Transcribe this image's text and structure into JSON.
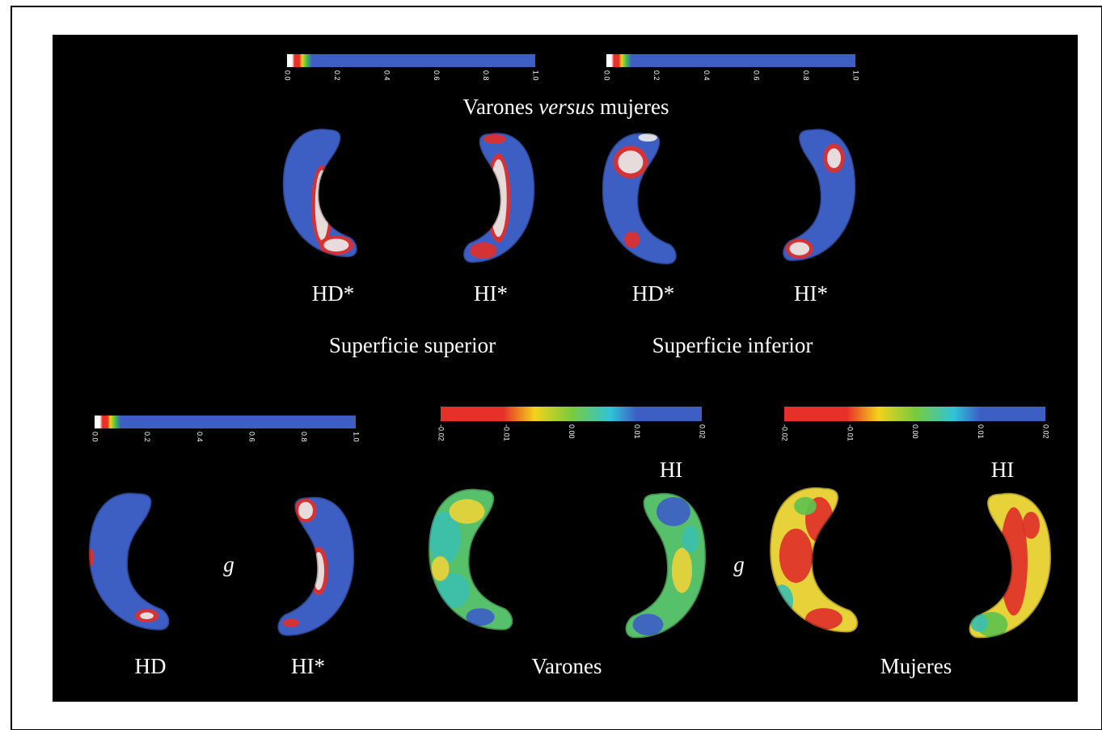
{
  "top_colorbars": [
    {
      "ticks": [
        "0.0",
        "0.2",
        "0.4",
        "0.6",
        "0.8",
        "1.0"
      ]
    },
    {
      "ticks": [
        "0.0",
        "0.2",
        "0.4",
        "0.6",
        "0.8",
        "1.0"
      ]
    }
  ],
  "top_title": {
    "before": "Varones",
    "italic": "versus",
    "after": "mujeres"
  },
  "top_labels": [
    "HD*",
    "HI*",
    "HD*",
    "HI*"
  ],
  "surface_labels": [
    "Superficie superior",
    "Superficie inferior"
  ],
  "bottom_colorbars": [
    {
      "ticks": [
        "0.0",
        "0.2",
        "0.4",
        "0.6",
        "0.8",
        "1.0"
      ]
    },
    {
      "ticks": [
        "-0.02",
        "-0.01",
        "0.00",
        "0.01",
        "0.02"
      ]
    },
    {
      "ticks": [
        "-0.02",
        "-0.01",
        "0.00",
        "0.01",
        "0.02"
      ]
    }
  ],
  "bottom_side_labels": [
    "HI",
    "HI"
  ],
  "g_labels": [
    "g",
    "g"
  ],
  "bottom_labels": [
    "HD",
    "HI*",
    "Varones",
    "Mujeres"
  ]
}
